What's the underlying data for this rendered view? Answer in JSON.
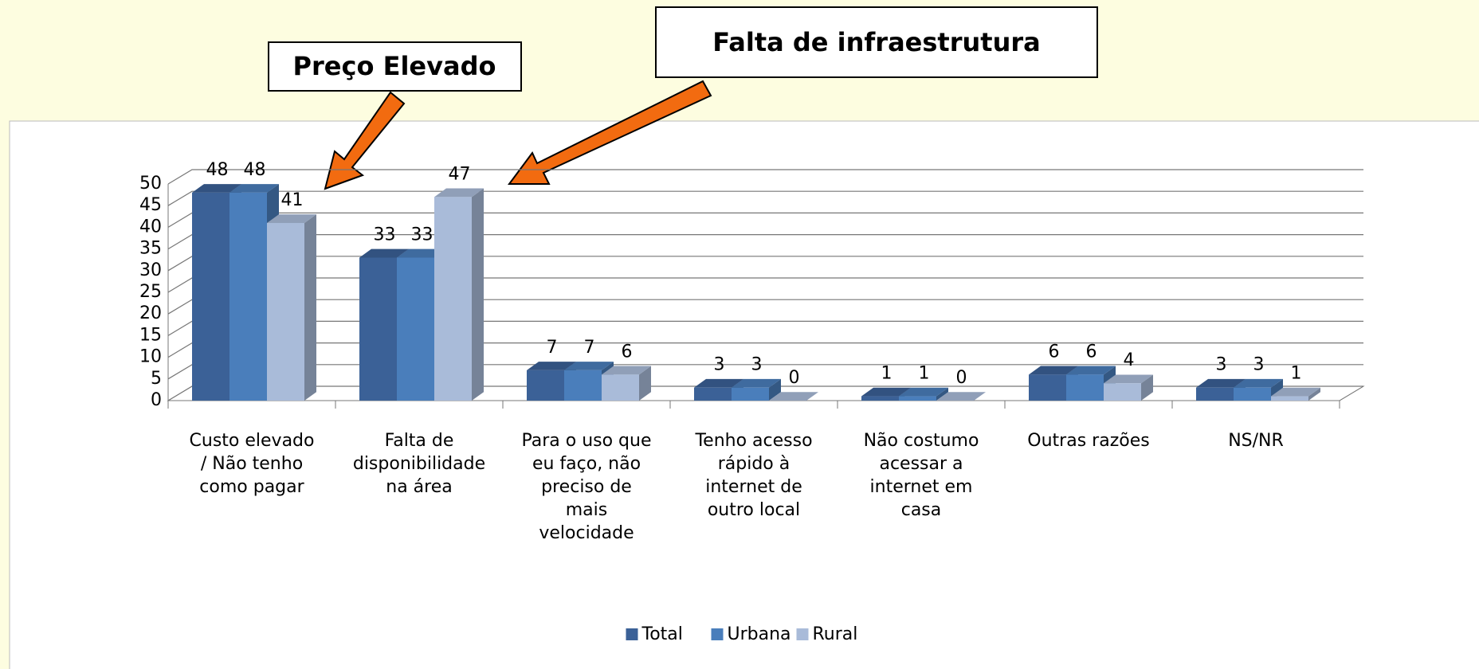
{
  "chart_data": {
    "type": "bar3d",
    "annotations": [
      "Preço Elevado",
      "Falta de infraestrutura"
    ],
    "categories": [
      "Custo elevado\n/ Não tenho\ncomo pagar",
      "Falta de\ndisponibilidade\nna área",
      "Para o uso que\neu faço, não\npreciso de\nmais\nvelocidade",
      "Tenho acesso\nrápido à\ninternet de\noutro local",
      "Não costumo\nacessar a\ninternet em\ncasa",
      "Outras razões",
      "NS/NR"
    ],
    "series": [
      {
        "name": "Total",
        "color": "#3b6197",
        "values": [
          48,
          33,
          7,
          3,
          1,
          6,
          3
        ]
      },
      {
        "name": "Urbana",
        "color": "#4a7ebb",
        "values": [
          48,
          33,
          7,
          3,
          1,
          6,
          3
        ]
      },
      {
        "name": "Rural",
        "color": "#a9bbd9",
        "values": [
          41,
          47,
          6,
          0,
          0,
          4,
          1
        ]
      }
    ],
    "ylim": [
      0,
      50
    ],
    "yticks": [
      0,
      5,
      10,
      15,
      20,
      25,
      30,
      35,
      40,
      45,
      50
    ],
    "grid": true
  }
}
